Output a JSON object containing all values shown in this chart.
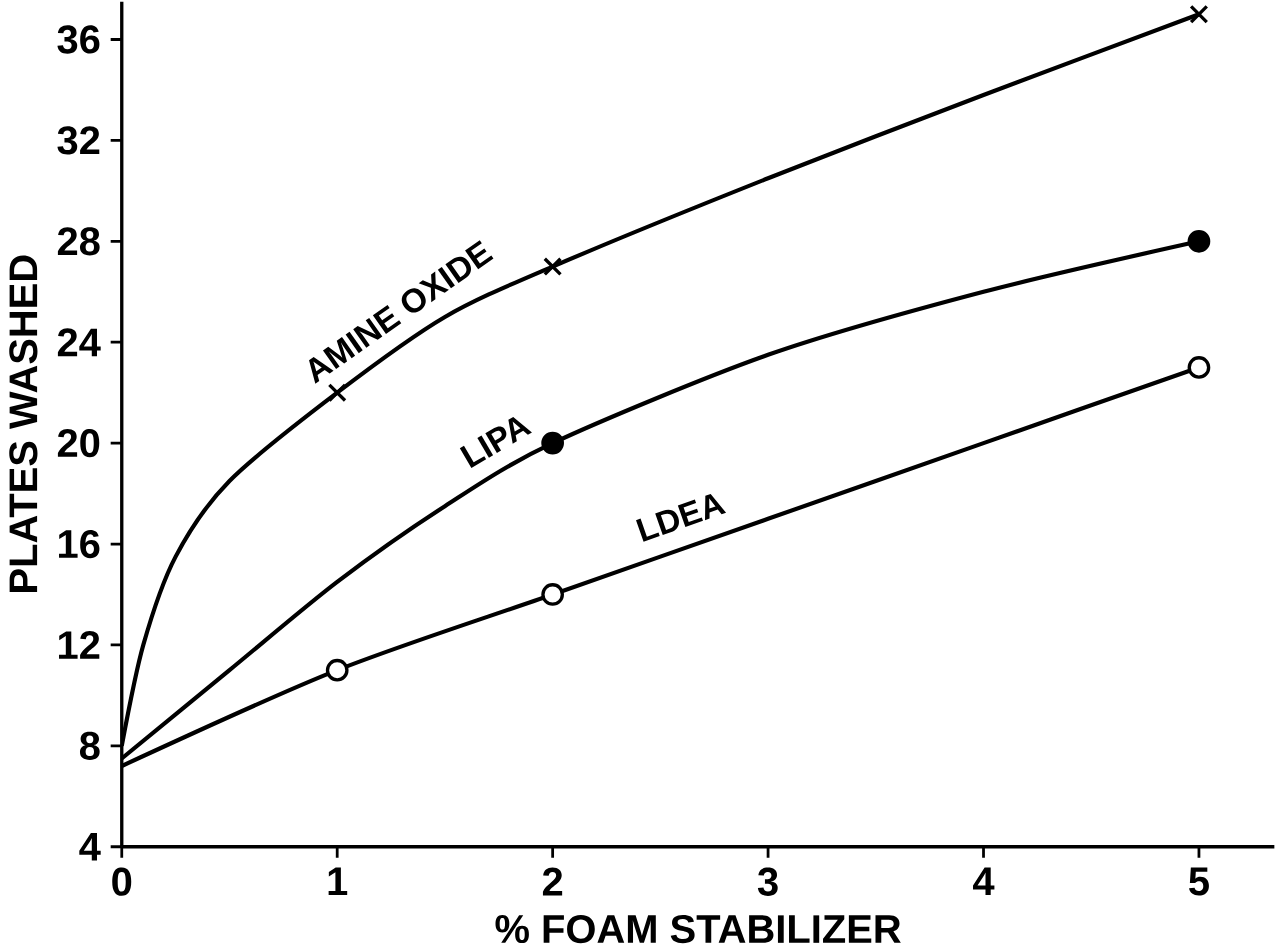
{
  "chart_data": {
    "type": "line",
    "xlabel": "% FOAM STABILIZER",
    "ylabel": "PLATES WASHED",
    "xlim": [
      0,
      5.35
    ],
    "ylim": [
      4,
      37.5
    ],
    "xticks": [
      0,
      1,
      2,
      3,
      4,
      5
    ],
    "yticks": [
      4,
      8,
      12,
      16,
      20,
      24,
      28,
      32,
      36
    ],
    "grid": false,
    "series": [
      {
        "name": "AMINE OXIDE",
        "color": "#000000",
        "marker": "none",
        "x": [
          0,
          0.1,
          0.25,
          0.5,
          1,
          1.5,
          2,
          3,
          4,
          5
        ],
        "values": [
          8,
          12,
          15.5,
          18.5,
          22,
          25,
          27,
          30.5,
          33.8,
          37
        ]
      },
      {
        "name": "LIPA",
        "color": "#000000",
        "marker": "none",
        "x": [
          0,
          0.5,
          1,
          1.5,
          2,
          3,
          4,
          5
        ],
        "values": [
          7.5,
          11,
          14.5,
          17.5,
          20,
          23.5,
          26,
          28
        ]
      },
      {
        "name": "LDEA",
        "color": "#000000",
        "marker": "none",
        "x": [
          0,
          1,
          2,
          3,
          4,
          5
        ],
        "values": [
          7.2,
          11,
          14,
          17,
          20,
          23
        ]
      },
      {
        "type": "scatter",
        "color": "#000000",
        "marker": "cross",
        "x": [
          1,
          2,
          5
        ],
        "values": [
          22,
          27,
          37
        ]
      },
      {
        "type": "scatter",
        "color": "#000000",
        "marker": "circle",
        "x": [
          2,
          5
        ],
        "values": [
          20,
          28
        ]
      },
      {
        "type": "scatter",
        "color": "#ffffff",
        "marker": "circle",
        "x": [
          1,
          2,
          5
        ],
        "values": [
          11,
          14,
          23
        ]
      }
    ]
  }
}
